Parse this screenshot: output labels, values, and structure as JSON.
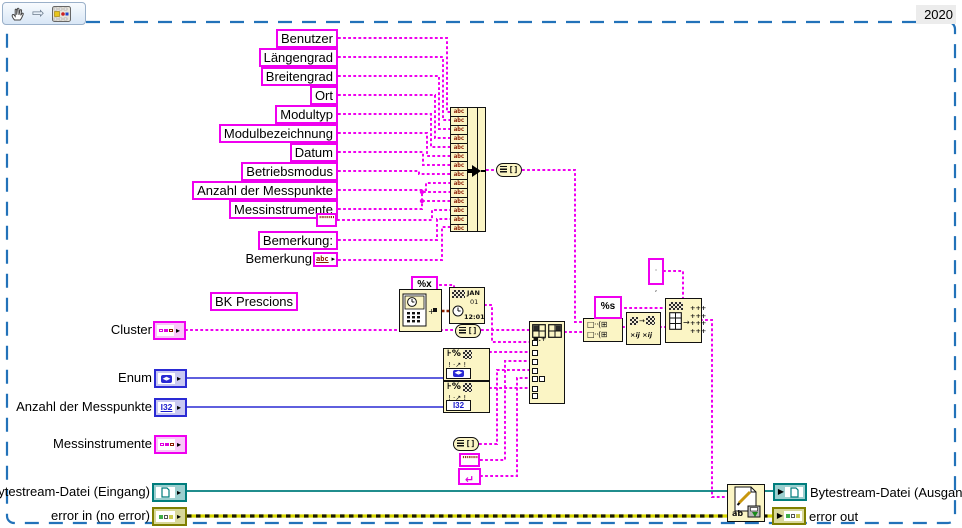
{
  "version_badge": "2020",
  "toolbar_icons": [
    "hand-tool-icon",
    "run-arrow-icon",
    "vi-thumbnail-icon"
  ],
  "colors": {
    "string_pink": "#EF00EF",
    "numeric_blue": "#2A2AD4",
    "path_teal": "#007D7D",
    "error_olive": "#7F7F00",
    "timestamp_brown": "#8B2000",
    "node_fill": "#FBF5C5",
    "frame_blue": "#2272B9"
  },
  "source_labels": [
    "Benutzer",
    "Längengrad",
    "Breitengrad",
    "Ort",
    "Modultyp",
    "Modulbezeichnung",
    "Datum",
    "Betriebsmodus",
    "Anzahl der Messpunkte",
    "Messinstrumente",
    "Bemerkung:"
  ],
  "bemerkung": {
    "label": "Bemerkung",
    "glyph": "abc"
  },
  "free_label": "BK Prescions",
  "constants": {
    "empty_string_top": "\"\"\"\"",
    "empty_string_mid": "\"\"\"\"",
    "format_hex": "%x",
    "format_string": "%s",
    "eol": "↵",
    "separator": "·\n,"
  },
  "build_array": {
    "cell_glyph": "abc",
    "cell_count": 14
  },
  "glyphs": {
    "array_pill": "[]",
    "date_month": "JAN",
    "date_day": "01",
    "date_time": "12:01",
    "date_plus": "+■",
    "fmt_top": "⊦%",
    "fmt_mid": "! ·↗ !",
    "enum_badge": "◀▶",
    "int_badge": "I32",
    "tall_top": "■.+",
    "row_glyph": "□··(⊞",
    "xij_bottom": "×ij ×ij",
    "arrow": "→",
    "plus_grid": "+++\n+++\n+++\n+++",
    "write_ab": "ab"
  },
  "left_controls": [
    {
      "label": "Cluster",
      "type": "cluster"
    },
    {
      "label": "Enum",
      "type": "enum"
    },
    {
      "label": "Anzahl der Messpunkte",
      "type": "i32"
    },
    {
      "label": "Messinstrumente",
      "type": "cluster"
    },
    {
      "label": "Bytestream-Datei (Eingang)",
      "type": "file-path"
    },
    {
      "label": "error in (no error)",
      "type": "error-cluster"
    }
  ],
  "right_indicators": [
    {
      "label": "Bytestream-Datei (Ausgang)",
      "type": "file-path"
    },
    {
      "label": "error out",
      "type": "error-cluster"
    }
  ]
}
